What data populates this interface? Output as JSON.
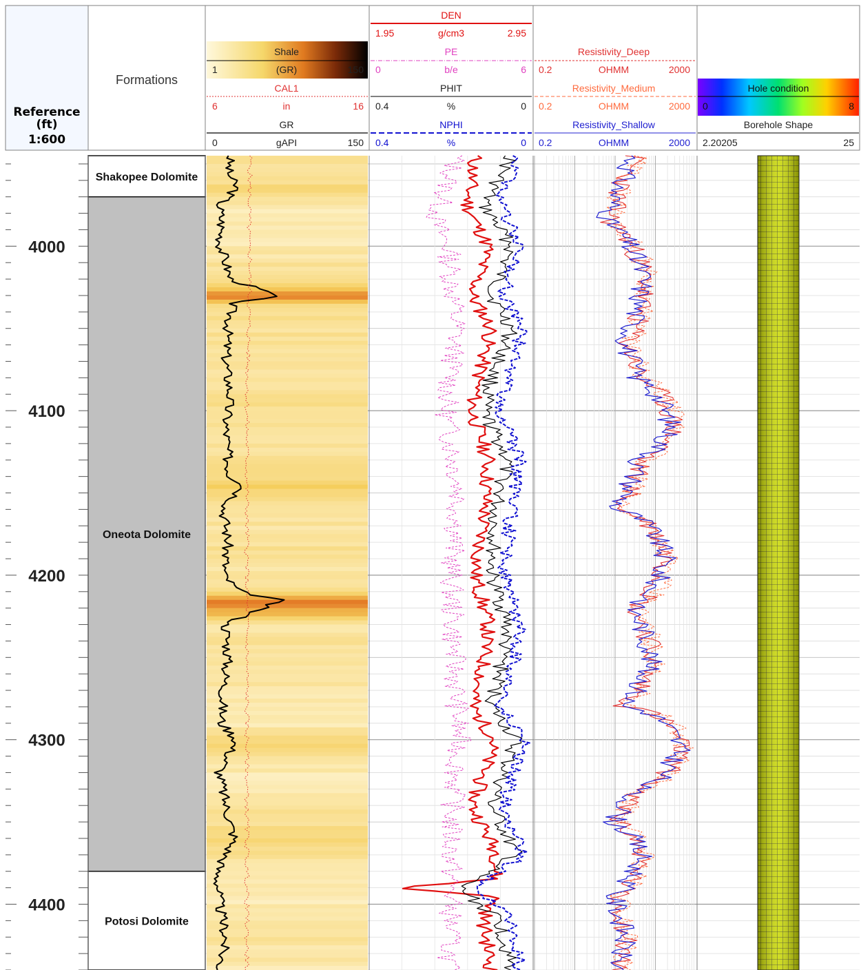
{
  "depth_track": {
    "title_line1": "Reference",
    "title_line2": "(ft)",
    "scale": "1:600",
    "depth_labels": [
      "4000",
      "4100",
      "4200",
      "4300",
      "4400"
    ]
  },
  "formations_track": {
    "title": "Formations",
    "zones": [
      {
        "name": "Shakopee Dolomite",
        "top": 3945,
        "base": 3970,
        "color": "#ffffff"
      },
      {
        "name": "Oneota Dolomite",
        "top": 3970,
        "base": 4380,
        "color": "#c0c0c0"
      },
      {
        "name": "Potosi Dolomite",
        "top": 4380,
        "base": 4440,
        "color": "#ffffff"
      }
    ]
  },
  "gr_track": {
    "headers": [
      {
        "name": "Shale",
        "unit": "(GR)",
        "min": "1",
        "max": "150"
      },
      {
        "name": "CAL1",
        "unit": "in",
        "min": "6",
        "max": "16"
      },
      {
        "name": "GR",
        "unit": "gAPI",
        "min": "0",
        "max": "150"
      }
    ],
    "colors": {
      "shale_light": "#fff8dc",
      "shale_dark": "#000000",
      "cal": "#e03030",
      "gr": "#000000"
    }
  },
  "porosity_track": {
    "headers": [
      {
        "name": "DEN",
        "unit": "g/cm3",
        "min": "1.95",
        "max": "2.95",
        "color": "#e01010"
      },
      {
        "name": "PE",
        "unit": "b/e",
        "min": "0",
        "max": "6",
        "color": "#e040c0"
      },
      {
        "name": "PHIT",
        "unit": "%",
        "min": "0.4",
        "max": "0",
        "color": "#000000"
      },
      {
        "name": "NPHI",
        "unit": "%",
        "min": "0.4",
        "max": "0",
        "color": "#1010d0"
      }
    ]
  },
  "resistivity_track": {
    "headers": [
      {
        "name": "Resistivity_Deep",
        "unit": "OHMM",
        "min": "0.2",
        "max": "2000",
        "color": "#e03030"
      },
      {
        "name": "Resistivity_Medium",
        "unit": "OHMM",
        "min": "0.2",
        "max": "2000",
        "color": "#ff6a3d"
      },
      {
        "name": "Resistivity_Shallow",
        "unit": "OHMM",
        "min": "0.2",
        "max": "2000",
        "color": "#2020d0"
      }
    ]
  },
  "borehole_track": {
    "legend_title": "Hole condition",
    "legend_min": "0",
    "legend_max": "8",
    "shape_title": "Borehole Shape",
    "min": "2.20205",
    "max": "25",
    "colors": {
      "fill": "#c9d800",
      "mesh": "#222222"
    }
  },
  "chart_data": {
    "type": "line",
    "depth_unit": "ft",
    "depth_range": [
      3945,
      4440
    ],
    "major_depth_interval": 100,
    "minor_depth_interval": 10,
    "series": [
      {
        "name": "GR",
        "unit": "gAPI",
        "scale": [
          0,
          150
        ],
        "color": "#000000",
        "depth": [
          3945,
          3955,
          3965,
          3975,
          3985,
          4000,
          4010,
          4020,
          4030,
          4035,
          4050,
          4070,
          4090,
          4110,
          4130,
          4140,
          4145,
          4160,
          4180,
          4200,
          4210,
          4215,
          4230,
          4250,
          4270,
          4290,
          4300,
          4320,
          4340,
          4360,
          4380,
          4400,
          4420,
          4440
        ],
        "values": [
          22,
          20,
          28,
          12,
          14,
          13,
          18,
          22,
          65,
          24,
          20,
          18,
          22,
          18,
          20,
          22,
          36,
          16,
          20,
          16,
          30,
          68,
          18,
          20,
          16,
          14,
          28,
          12,
          18,
          26,
          10,
          12,
          18,
          12
        ]
      },
      {
        "name": "CAL1",
        "unit": "in",
        "scale": [
          6,
          16
        ],
        "color": "#e03030",
        "depth": [
          3945,
          4000,
          4007,
          4100,
          4200,
          4300,
          4420,
          4440
        ],
        "values": [
          8.7,
          8.6,
          8.7,
          8.5,
          8.5,
          8.5,
          8.5,
          8.5
        ]
      },
      {
        "name": "DEN",
        "unit": "g/cm3",
        "scale": [
          1.95,
          2.95
        ],
        "color": "#e01010",
        "depth": [
          3945,
          3975,
          4000,
          4030,
          4050,
          4080,
          4100,
          4130,
          4160,
          4200,
          4230,
          4260,
          4280,
          4300,
          4340,
          4370,
          4385,
          4390,
          4395,
          4410,
          4440
        ],
        "values": [
          2.6,
          2.55,
          2.68,
          2.58,
          2.7,
          2.62,
          2.58,
          2.68,
          2.66,
          2.6,
          2.68,
          2.64,
          2.58,
          2.72,
          2.58,
          2.74,
          2.72,
          2.1,
          2.72,
          2.65,
          2.7
        ]
      },
      {
        "name": "PE",
        "unit": "b/e",
        "scale": [
          0,
          6
        ],
        "color": "#e040c0",
        "depth": [
          3945,
          3985,
          4000,
          4050,
          4100,
          4150,
          4200,
          4250,
          4300,
          4350,
          4400,
          4440
        ],
        "values": [
          3.2,
          2.4,
          2.9,
          3.2,
          2.8,
          3.3,
          3.0,
          3.1,
          3.3,
          3.0,
          3.0,
          2.9
        ]
      },
      {
        "name": "PHIT",
        "unit": "%",
        "scale": [
          0.4,
          0
        ],
        "color": "#000000",
        "depth": [
          3945,
          3975,
          4000,
          4030,
          4050,
          4080,
          4100,
          4130,
          4160,
          4200,
          4230,
          4260,
          4280,
          4300,
          4340,
          4370,
          4390,
          4410,
          4440
        ],
        "values": [
          0.05,
          0.12,
          0.05,
          0.1,
          0.05,
          0.1,
          0.12,
          0.06,
          0.09,
          0.1,
          0.06,
          0.08,
          0.1,
          0.04,
          0.1,
          0.04,
          0.18,
          0.08,
          0.05
        ]
      },
      {
        "name": "NPHI",
        "unit": "%",
        "scale": [
          0.4,
          0
        ],
        "color": "#1010d0",
        "depth": [
          3945,
          3975,
          4000,
          4030,
          4050,
          4080,
          4100,
          4130,
          4160,
          4200,
          4230,
          4260,
          4280,
          4300,
          4340,
          4370,
          4390,
          4410,
          4440
        ],
        "values": [
          0.03,
          0.08,
          0.03,
          0.07,
          0.02,
          0.06,
          0.08,
          0.03,
          0.05,
          0.07,
          0.03,
          0.05,
          0.08,
          0.02,
          0.07,
          0.02,
          0.14,
          0.05,
          0.03
        ]
      },
      {
        "name": "Resistivity_Deep",
        "unit": "OHMM",
        "scale": [
          0.2,
          2000
        ],
        "log": true,
        "color": "#e03030",
        "depth": [
          3945,
          3965,
          3985,
          4000,
          4020,
          4060,
          4080,
          4110,
          4130,
          4160,
          4190,
          4220,
          4250,
          4280,
          4305,
          4330,
          4350,
          4370,
          4395,
          4420,
          4440
        ],
        "values": [
          60,
          25,
          15,
          50,
          120,
          40,
          80,
          600,
          90,
          20,
          400,
          60,
          180,
          30,
          900,
          60,
          20,
          100,
          20,
          40,
          25
        ]
      },
      {
        "name": "Resistivity_Medium",
        "unit": "OHMM",
        "scale": [
          0.2,
          2000
        ],
        "log": true,
        "color": "#ff6a3d",
        "depth": [
          3945,
          3965,
          3985,
          4000,
          4020,
          4060,
          4080,
          4110,
          4130,
          4160,
          4190,
          4220,
          4250,
          4280,
          4305,
          4330,
          4350,
          4370,
          4395,
          4420,
          4440
        ],
        "values": [
          70,
          28,
          18,
          60,
          140,
          45,
          90,
          700,
          100,
          22,
          450,
          70,
          200,
          35,
          1100,
          70,
          22,
          120,
          25,
          45,
          28
        ]
      },
      {
        "name": "Resistivity_Shallow",
        "unit": "OHMM",
        "scale": [
          0.2,
          2000
        ],
        "log": true,
        "color": "#2020d0",
        "depth": [
          3945,
          3965,
          3985,
          4000,
          4020,
          4060,
          4080,
          4110,
          4130,
          4160,
          4190,
          4220,
          4250,
          4280,
          4305,
          4330,
          4350,
          4370,
          4395,
          4420,
          4440
        ],
        "values": [
          55,
          22,
          12,
          45,
          100,
          35,
          70,
          500,
          80,
          18,
          350,
          55,
          160,
          28,
          800,
          55,
          18,
          90,
          18,
          35,
          22
        ]
      },
      {
        "name": "Borehole Shape",
        "scale": [
          2.20205,
          25
        ],
        "color": "#c9d800",
        "depth": [
          3945,
          4440
        ],
        "values": [
          8.5,
          8.5
        ]
      }
    ]
  }
}
